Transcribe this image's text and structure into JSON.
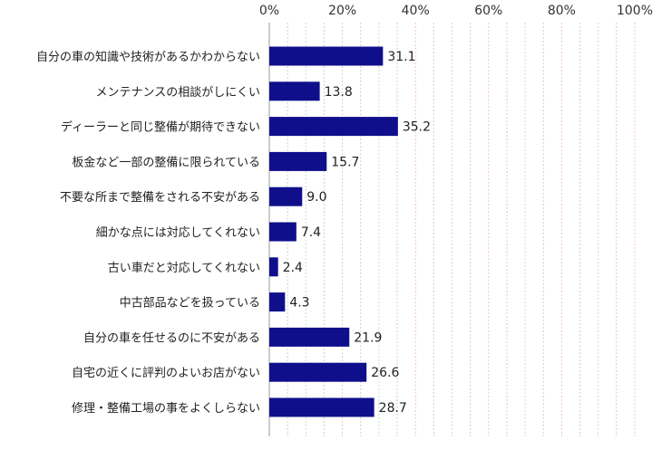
{
  "chart_data": {
    "type": "bar",
    "orientation": "horizontal",
    "categories": [
      "自分の車の知識や技術があるかわからない",
      "メンテナンスの相談がしにくい",
      "ディーラーと同じ整備が期待できない",
      "板金など一部の整備に限られている",
      "不要な所まで整備をされる不安がある",
      "細かな点には対応してくれない",
      "古い車だと対応してくれない",
      "中古部品などを扱っている",
      "自分の車を任せるのに不安がある",
      "自宅の近くに評判のよいお店がない",
      "修理・整備工場の事をよくしらない"
    ],
    "values": [
      31.1,
      13.8,
      35.2,
      15.7,
      9.0,
      7.4,
      2.4,
      4.3,
      21.9,
      26.6,
      28.7
    ],
    "value_labels": [
      "31.1",
      "13.8",
      "35.2",
      "15.7",
      "9.0",
      "7.4",
      "2.4",
      "4.3",
      "21.9",
      "26.6",
      "28.7"
    ],
    "x_ticks": [
      0,
      20,
      40,
      60,
      80,
      100
    ],
    "x_tick_labels": [
      "0%",
      "20%",
      "40%",
      "60%",
      "80%",
      "100%"
    ],
    "xlim": [
      0,
      100
    ],
    "bar_color": "#0f0f8c",
    "grid": true,
    "grid_colors": [
      "#f2c7b5",
      "#bfe3bf",
      "#cfcfcf"
    ]
  }
}
